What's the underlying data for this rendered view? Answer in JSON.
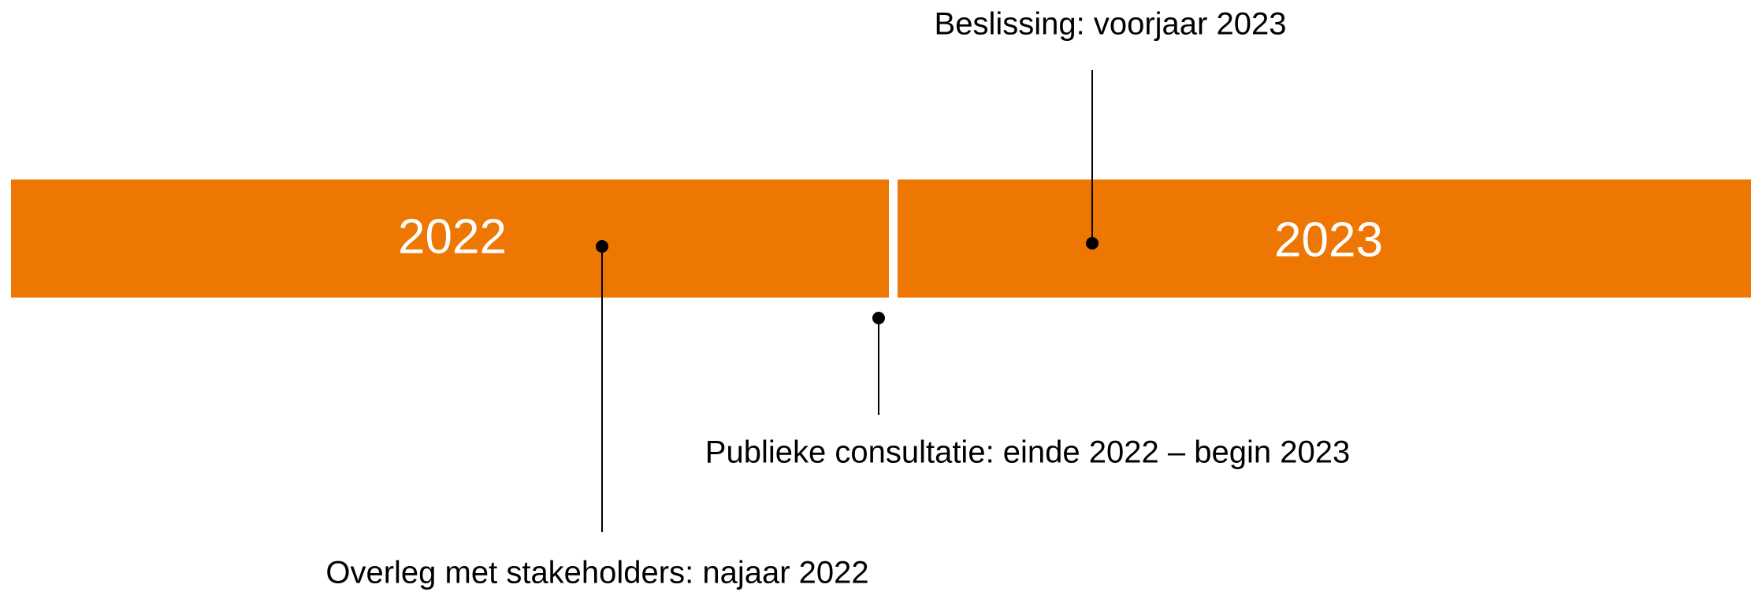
{
  "years": [
    "2022",
    "2023"
  ],
  "milestones": [
    {
      "label": "Beslissing: voorjaar 2023"
    },
    {
      "label": "Publieke consultatie: einde 2022 – begin 2023"
    },
    {
      "label": "Overleg met stakeholders: najaar 2022"
    }
  ]
}
